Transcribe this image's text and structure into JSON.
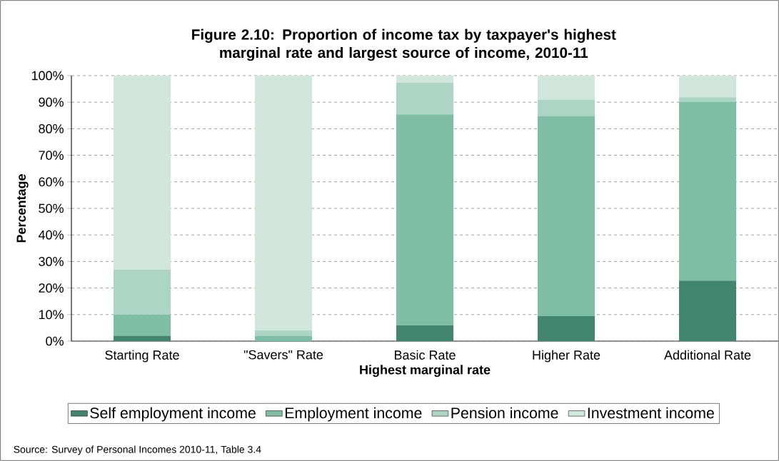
{
  "chart_data": {
    "type": "bar",
    "stacked": true,
    "title": "Figure 2.10: Proportion of income tax by taxpayer's highest marginal rate and largest source of income, 2010-11",
    "xlabel": "Highest marginal rate",
    "ylabel": "Percentage",
    "categories": [
      "Starting Rate",
      "\"Savers\" Rate",
      "Basic Rate",
      "Higher Rate",
      "Additional Rate"
    ],
    "series": [
      {
        "name": "Self employment income",
        "color": "#438670",
        "values": [
          2.0,
          null,
          6.0,
          9.4,
          22.8
        ]
      },
      {
        "name": "Employment income",
        "color": "#7dbea5",
        "values": [
          8.0,
          2.0,
          79.4,
          75.4,
          67.3
        ]
      },
      {
        "name": "Pension income",
        "color": "#acd5c5",
        "values": [
          16.9,
          2.1,
          12.0,
          6.2,
          1.8
        ]
      },
      {
        "name": "Investment income",
        "color": "#d1e7dd",
        "values": [
          73.1,
          95.9,
          2.6,
          9.0,
          8.1
        ]
      }
    ],
    "ylim": [
      0,
      100
    ],
    "yticks": [
      {
        "value": 0,
        "label": "0%"
      },
      {
        "value": 10,
        "label": "10%"
      },
      {
        "value": 20,
        "label": "20%"
      },
      {
        "value": 30,
        "label": "30%"
      },
      {
        "value": 40,
        "label": "40%"
      },
      {
        "value": 50,
        "label": "50%"
      },
      {
        "value": 60,
        "label": "60%"
      },
      {
        "value": 70,
        "label": "70%"
      },
      {
        "value": 80,
        "label": "80%"
      },
      {
        "value": 90,
        "label": "90%"
      },
      {
        "value": 100,
        "label": "100%"
      }
    ],
    "grid": "y",
    "legend": "bottom",
    "annotations": [
      "Source: Survey of Personal Incomes 2010-11, Table 3.4"
    ]
  }
}
